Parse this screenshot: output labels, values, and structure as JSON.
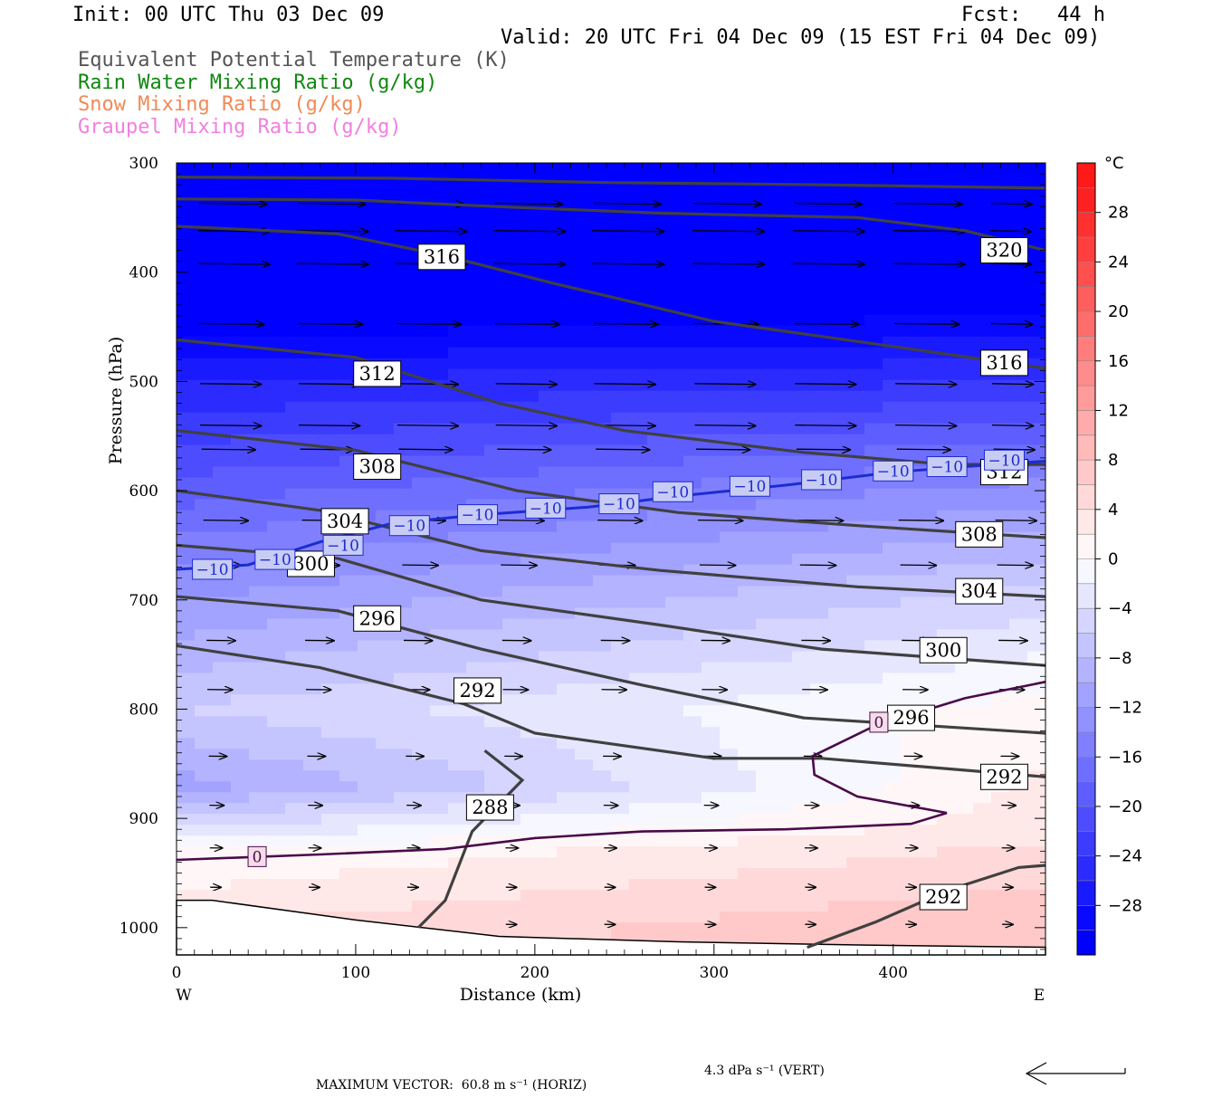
{
  "header": {
    "init": "Init: 00 UTC Thu 03 Dec 09",
    "fcst": "Fcst:   44 h",
    "valid": "Valid: 20 UTC Fri 04 Dec 09 (15 EST Fri 04 Dec 09)"
  },
  "fields": [
    {
      "text": "Equivalent Potential Temperature (K)",
      "color": "#555555"
    },
    {
      "text": "Rain Water Mixing Ratio (g/kg)",
      "color": "#118811"
    },
    {
      "text": "Snow Mixing Ratio (g/kg)",
      "color": "#f08a58"
    },
    {
      "text": "Graupel Mixing Ratio (g/kg)",
      "color": "#f080e0"
    }
  ],
  "footer": {
    "max_vector": "MAXIMUM VECTOR:  60.8 m s⁻¹ (HORIZ)",
    "vert": "4.3 dPa s⁻¹ (VERT)"
  },
  "chart_data": {
    "type": "heatmap",
    "xlabel": "Distance (km)",
    "ylabel": "Pressure (hPa)",
    "xlim": [
      0,
      485
    ],
    "ylim": [
      300,
      1025
    ],
    "y_inverted": true,
    "x_ticks": [
      0,
      100,
      200,
      300,
      400
    ],
    "y_ticks": [
      300,
      400,
      500,
      600,
      700,
      800,
      900,
      1000
    ],
    "x_end_labels": {
      "left": "W",
      "right": "E"
    },
    "colorbar": {
      "unit": "°C",
      "ticks": [
        28,
        24,
        20,
        16,
        12,
        8,
        4,
        0,
        -4,
        -8,
        -12,
        -16,
        -20,
        -24,
        -28
      ],
      "range": [
        -32,
        32
      ],
      "step": 2
    },
    "temperature_field": {
      "description_levels_c": "filled temperature shading",
      "profile_west": [
        [
          300,
          -48
        ],
        [
          400,
          -36
        ],
        [
          500,
          -26
        ],
        [
          600,
          -19
        ],
        [
          700,
          -12
        ],
        [
          800,
          -6
        ],
        [
          870,
          -11
        ],
        [
          930,
          0
        ],
        [
          1000,
          4
        ]
      ],
      "profile_east": [
        [
          300,
          -44
        ],
        [
          400,
          -34
        ],
        [
          500,
          -24
        ],
        [
          600,
          -13
        ],
        [
          700,
          -5
        ],
        [
          800,
          1
        ],
        [
          900,
          3
        ],
        [
          1000,
          8
        ]
      ]
    },
    "theta_e_contours": [
      {
        "level": 320,
        "points": [
          [
            0,
            313
          ],
          [
            120,
            314
          ],
          [
            240,
            318
          ],
          [
            360,
            320
          ],
          [
            485,
            323
          ]
        ],
        "labels": [
          [
            462,
            380
          ]
        ]
      },
      {
        "level": 316,
        "points": [
          [
            0,
            333
          ],
          [
            100,
            334
          ],
          [
            180,
            340
          ],
          [
            270,
            346
          ],
          [
            380,
            350
          ],
          [
            440,
            362
          ],
          [
            485,
            380
          ]
        ],
        "labels": [
          [
            148,
            386
          ],
          [
            462,
            483
          ]
        ]
      },
      {
        "level": 312,
        "points": [
          [
            0,
            358
          ],
          [
            90,
            365
          ],
          [
            150,
            385
          ],
          [
            210,
            410
          ],
          [
            300,
            445
          ],
          [
            400,
            468
          ],
          [
            485,
            488
          ]
        ],
        "labels": [
          [
            112,
            493
          ],
          [
            462,
            583
          ]
        ]
      },
      {
        "level": 308,
        "points": [
          [
            0,
            462
          ],
          [
            100,
            478
          ],
          [
            180,
            520
          ],
          [
            250,
            545
          ],
          [
            350,
            565
          ],
          [
            430,
            576
          ],
          [
            485,
            576
          ]
        ],
        "labels": [
          [
            112,
            578
          ],
          [
            448,
            640
          ]
        ]
      },
      {
        "level": 304,
        "points": [
          [
            0,
            545
          ],
          [
            100,
            563
          ],
          [
            190,
            600
          ],
          [
            280,
            620
          ],
          [
            380,
            632
          ],
          [
            485,
            643
          ]
        ],
        "labels": [
          [
            94,
            628
          ],
          [
            448,
            692
          ]
        ]
      },
      {
        "level": 300,
        "points": [
          [
            0,
            600
          ],
          [
            80,
            618
          ],
          [
            170,
            655
          ],
          [
            270,
            673
          ],
          [
            380,
            688
          ],
          [
            485,
            697
          ]
        ],
        "labels": [
          [
            75,
            667
          ],
          [
            428,
            746
          ]
        ]
      },
      {
        "level": 296,
        "points": [
          [
            0,
            650
          ],
          [
            90,
            662
          ],
          [
            170,
            700
          ],
          [
            270,
            723
          ],
          [
            360,
            745
          ],
          [
            485,
            760
          ]
        ],
        "labels": [
          [
            112,
            717
          ],
          [
            410,
            808
          ]
        ]
      },
      {
        "level": 292,
        "points": [
          [
            0,
            697
          ],
          [
            90,
            710
          ],
          [
            170,
            745
          ],
          [
            260,
            778
          ],
          [
            350,
            808
          ],
          [
            485,
            822
          ]
        ],
        "labels": [
          [
            168,
            783
          ],
          [
            462,
            862
          ]
        ]
      },
      {
        "level": 288,
        "points": [
          [
            0,
            742
          ],
          [
            80,
            762
          ],
          [
            160,
            795
          ],
          [
            200,
            822
          ],
          [
            300,
            845
          ],
          [
            360,
            845
          ],
          [
            485,
            862
          ]
        ],
        "labels": [
          [
            175,
            890
          ]
        ]
      },
      {
        "level": 288,
        "points": [
          [
            172,
            838
          ],
          [
            193,
            865
          ],
          [
            165,
            912
          ],
          [
            150,
            975
          ],
          [
            135,
            1000
          ]
        ],
        "labels": [
          [
            175,
            890
          ]
        ]
      },
      {
        "level": 292,
        "points": [
          [
            352,
            1018
          ],
          [
            390,
            995
          ],
          [
            432,
            965
          ],
          [
            470,
            945
          ],
          [
            485,
            943
          ]
        ],
        "labels": [
          [
            428,
            972
          ]
        ]
      }
    ],
    "isotherm_minus10": {
      "level": -10,
      "points": [
        [
          0,
          672
        ],
        [
          40,
          668
        ],
        [
          80,
          647
        ],
        [
          120,
          630
        ],
        [
          170,
          622
        ],
        [
          230,
          615
        ],
        [
          280,
          605
        ],
        [
          340,
          595
        ],
        [
          400,
          583
        ],
        [
          440,
          578
        ],
        [
          485,
          573
        ]
      ],
      "labels": [
        [
          20,
          672
        ],
        [
          55,
          663
        ],
        [
          93,
          650
        ],
        [
          130,
          632
        ],
        [
          168,
          622
        ],
        [
          206,
          616
        ],
        [
          247,
          612
        ],
        [
          277,
          601
        ],
        [
          320,
          596
        ],
        [
          360,
          590
        ],
        [
          400,
          582
        ],
        [
          430,
          578
        ],
        [
          462,
          572
        ]
      ]
    },
    "freezing_lines": {
      "level": 0,
      "lower": [
        [
          0,
          938
        ],
        [
          80,
          933
        ],
        [
          150,
          928
        ],
        [
          200,
          918
        ],
        [
          260,
          912
        ],
        [
          340,
          910
        ],
        [
          410,
          905
        ],
        [
          430,
          895
        ]
      ],
      "upper": [
        [
          430,
          895
        ],
        [
          380,
          880
        ],
        [
          356,
          860
        ],
        [
          355,
          843
        ],
        [
          390,
          815
        ],
        [
          440,
          790
        ],
        [
          485,
          775
        ]
      ],
      "labels": [
        [
          45,
          935
        ],
        [
          392,
          812
        ]
      ]
    },
    "terrain": [
      [
        0,
        975
      ],
      [
        20,
        975
      ],
      [
        100,
        993
      ],
      [
        180,
        1008
      ],
      [
        280,
        1013
      ],
      [
        385,
        1016
      ],
      [
        485,
        1018
      ]
    ],
    "wind_vectors_note": "horizontal wind vectors, westerly, decreasing with height toward surface",
    "wind_levels": [
      {
        "p": 337,
        "len_km": 38
      },
      {
        "p": 362,
        "len_km": 40
      },
      {
        "p": 392,
        "len_km": 40
      },
      {
        "p": 447,
        "len_km": 36
      },
      {
        "p": 502,
        "len_km": 34
      },
      {
        "p": 540,
        "len_km": 34
      },
      {
        "p": 562,
        "len_km": 30
      },
      {
        "p": 627,
        "len_km": 25
      },
      {
        "p": 668,
        "len_km": 20
      },
      {
        "p": 737,
        "len_km": 16
      },
      {
        "p": 782,
        "len_km": 14
      },
      {
        "p": 843,
        "len_km": 10
      },
      {
        "p": 888,
        "len_km": 8
      },
      {
        "p": 927,
        "len_km": 7
      },
      {
        "p": 963,
        "len_km": 6
      },
      {
        "p": 997,
        "len_km": 6
      }
    ]
  }
}
